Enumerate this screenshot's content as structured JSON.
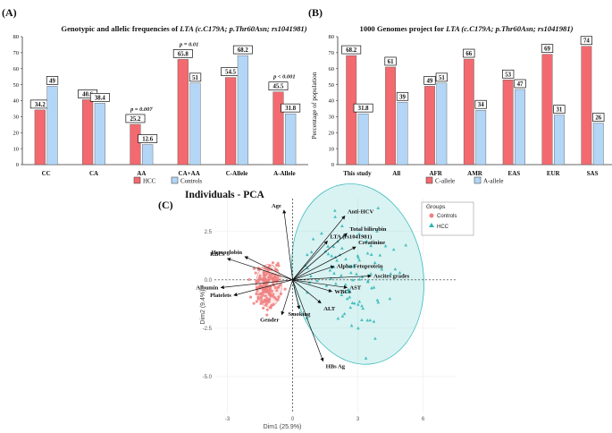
{
  "chart_data": [
    {
      "panel": "(A)",
      "type": "bar",
      "title_prefix": "Genotypic and allelic frequencies of ",
      "title_gene": "LTA (c.C179A; p.Thr60Asn; rs1041981)",
      "categories": [
        "CC",
        "CA",
        "AA",
        "CA+AA",
        "C-Allele",
        "A-Allele"
      ],
      "series": [
        {
          "name": "HCC",
          "color": "#f26a6f",
          "values": [
            34.2,
            40.6,
            25.2,
            65.8,
            54.5,
            45.5
          ]
        },
        {
          "name": "Controls",
          "color": "#b3d6f7",
          "values": [
            49,
            38.4,
            12.6,
            51,
            68.2,
            31.8
          ]
        }
      ],
      "value_labels": {
        "HCC": [
          "34.2",
          "40.6",
          "25.2",
          "65.8",
          "54.5",
          "45.5"
        ],
        "Controls": [
          "49",
          "38.4",
          "12.6",
          "51",
          "68.2",
          "31.8"
        ]
      },
      "annotations": [
        "",
        "",
        "p = 0.007",
        "p = 0.01",
        "",
        "p < 0.001"
      ],
      "ylim": [
        0,
        80
      ],
      "yticks": [
        0,
        10,
        20,
        30,
        40,
        50,
        60,
        70,
        80
      ],
      "ylabel": "",
      "legend": "bottom"
    },
    {
      "panel": "(B)",
      "type": "bar",
      "title_prefix": "1000 Genomes project for ",
      "title_gene": "LTA (c.C179A; p.Thr60Asn; rs1041981)",
      "categories": [
        "This study",
        "All",
        "AFR",
        "AMR",
        "EAS",
        "EUR",
        "SAS"
      ],
      "series": [
        {
          "name": "C-allele",
          "color": "#f26a6f",
          "values": [
            68.2,
            61,
            49,
            66,
            53,
            69,
            74
          ]
        },
        {
          "name": "A-allele",
          "color": "#b3d6f7",
          "values": [
            31.8,
            39,
            51,
            34,
            47,
            31,
            26
          ]
        }
      ],
      "value_labels": {
        "C-allele": [
          "68.2",
          "61",
          "49",
          "66",
          "53",
          "69",
          "74"
        ],
        "A-allele": [
          "31.8",
          "39",
          "51",
          "34",
          "47",
          "31",
          "26"
        ]
      },
      "ylim": [
        0,
        80
      ],
      "yticks": [
        0,
        10,
        20,
        30,
        40,
        50,
        60,
        70,
        80
      ],
      "ylabel": "Percentage of population",
      "legend": "bottom"
    },
    {
      "panel": "(C)",
      "type": "scatter",
      "title": "Individuals - PCA",
      "xlabel": "Dim1 (25.9%)",
      "ylabel": "Dim2 (9.4%)",
      "xlim": [
        -3.6,
        7.5
      ],
      "ylim": [
        -6.9,
        4.2
      ],
      "xticks": [
        -3,
        0,
        3,
        6
      ],
      "yticks": [
        -5.0,
        -2.5,
        0.0,
        2.5
      ],
      "ytick_labels": [
        "-5.0",
        "-2.5",
        "0.0",
        "2.5"
      ],
      "legend_title": "Groups",
      "groups": [
        {
          "name": "Controls",
          "color": "#f08080",
          "marker": "circle"
        },
        {
          "name": "HCC",
          "color": "#2ab5b5",
          "marker": "triangle"
        }
      ],
      "vectors": [
        {
          "name": "Age",
          "x": -0.4,
          "y": 3.6
        },
        {
          "name": "Anti-HCV",
          "x": 2.4,
          "y": 3.3
        },
        {
          "name": "Total bilirubin",
          "x": 2.5,
          "y": 2.4
        },
        {
          "name": "LTA (rs1041981)",
          "x": 1.6,
          "y": 2.0
        },
        {
          "name": "Creatinine",
          "x": 2.9,
          "y": 1.7
        },
        {
          "name": "Hemoglobin",
          "x": -2.2,
          "y": 1.2
        },
        {
          "name": "RBCs",
          "x": -3.0,
          "y": 1.1
        },
        {
          "name": "Alpha Fetoprotein",
          "x": 1.9,
          "y": 0.7
        },
        {
          "name": "Ascites grades",
          "x": 3.6,
          "y": 0.2
        },
        {
          "name": "Albumin",
          "x": -3.3,
          "y": -0.4
        },
        {
          "name": "Platelets",
          "x": -2.7,
          "y": -0.8
        },
        {
          "name": "WBCs",
          "x": 1.8,
          "y": -0.6
        },
        {
          "name": "AST",
          "x": 2.5,
          "y": -0.4
        },
        {
          "name": "ALT",
          "x": 1.3,
          "y": -1.2
        },
        {
          "name": "Smoking",
          "x": 0.3,
          "y": -1.5
        },
        {
          "name": "Gender",
          "x": -0.5,
          "y": -1.8
        },
        {
          "name": "HBs Ag",
          "x": 1.4,
          "y": -4.2
        }
      ]
    }
  ]
}
